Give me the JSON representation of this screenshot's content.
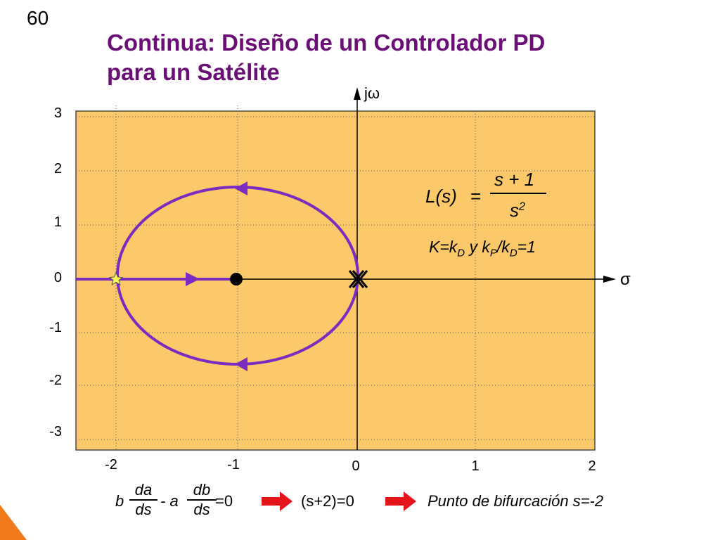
{
  "slide": {
    "number": "60"
  },
  "title": {
    "line1": "Continua: Diseño de un Controlador PD",
    "line2": "para un Satélite"
  },
  "axes": {
    "imag_label": "jω",
    "real_label": "σ",
    "y_ticks": [
      "3",
      "2",
      "1",
      "0",
      "-1",
      "-2",
      "-3"
    ],
    "x_ticks": [
      "-2",
      "-1",
      "0",
      "1",
      "2"
    ]
  },
  "formula": {
    "lhs": "L(s)",
    "equals": "=",
    "numerator": "s + 1",
    "denominator_base": "s",
    "denominator_exp": "2"
  },
  "gain": {
    "k": "K=k",
    "k_sub": "D",
    "y": " y  k",
    "p_sub": "P",
    "slash": "/k",
    "d_sub": "D",
    "tail": "=1"
  },
  "bottom": {
    "b": "b",
    "da": "da",
    "ds1": "ds",
    "minus_a": "- a",
    "db": "db",
    "ds2": "ds",
    "eq0": "=0",
    "result1": "(s+2)=0",
    "result2": "Punto de bifurcación s=-2"
  },
  "colors": {
    "title": "#6a0f75",
    "plot_bg": "#fbc96a",
    "locus": "#7b2bbf",
    "arrow": "#e5141a"
  },
  "icons": [
    "star-icon",
    "zero-marker",
    "double-pole-marker",
    "red-arrow-icon"
  ]
}
